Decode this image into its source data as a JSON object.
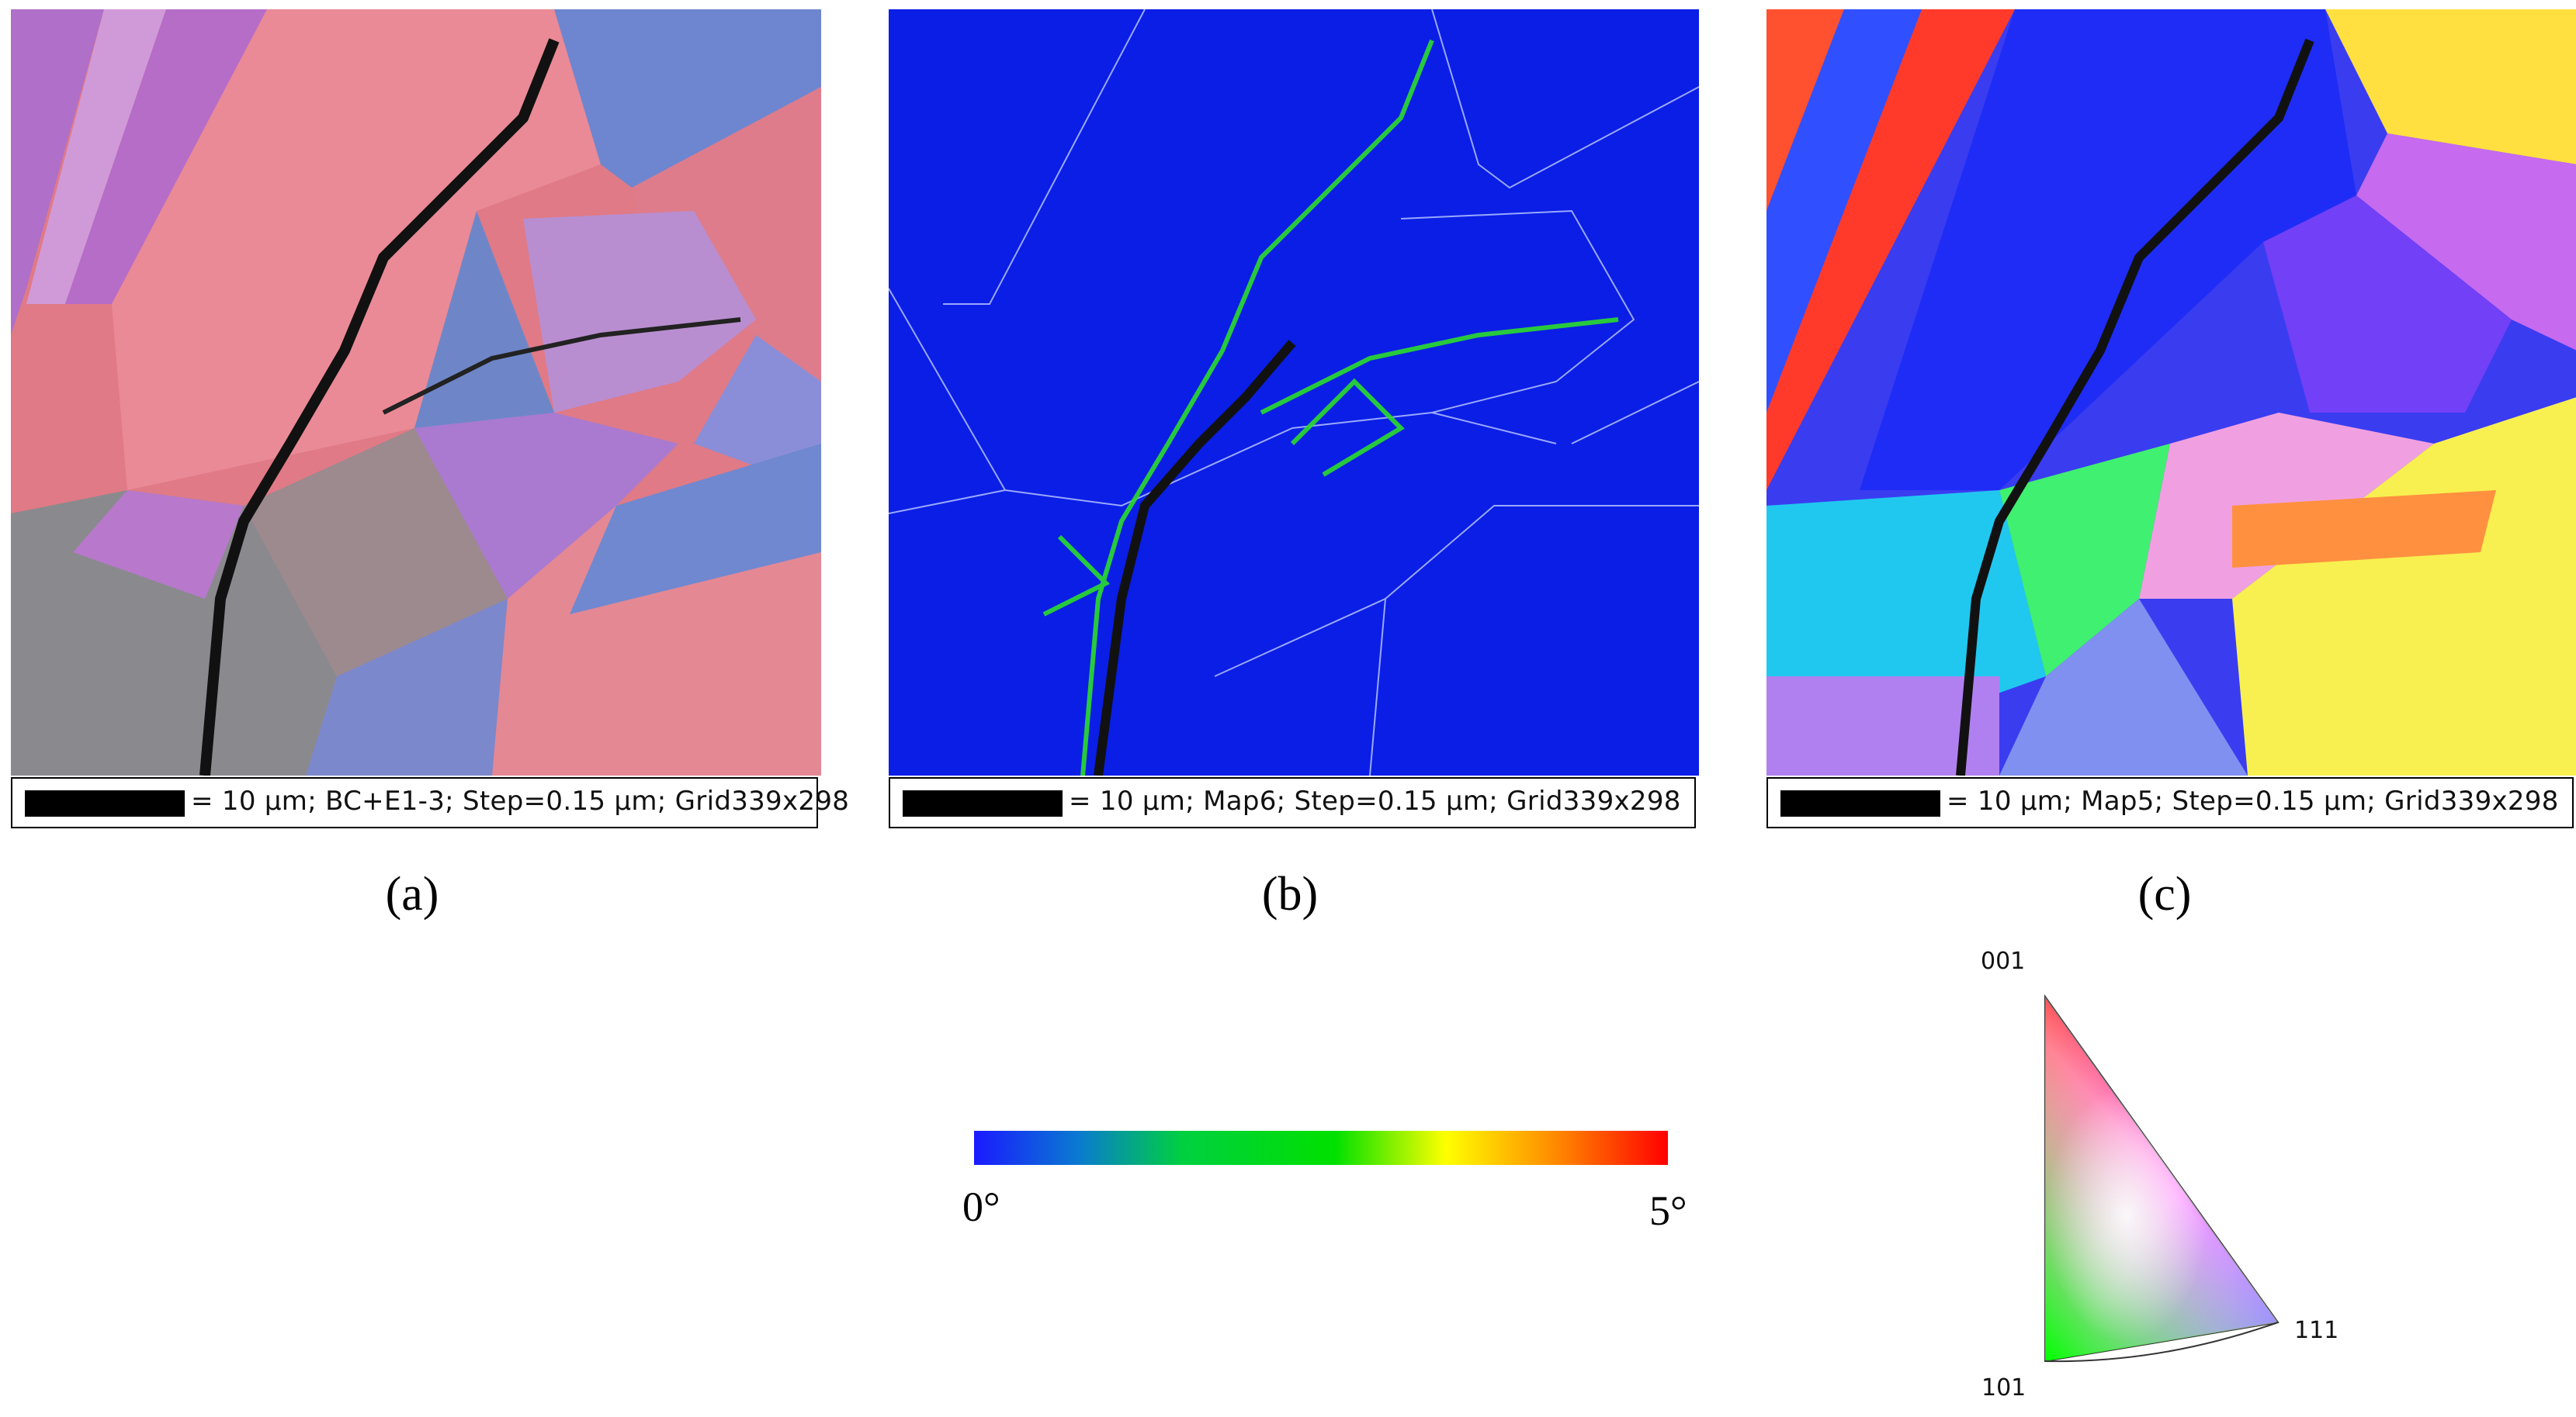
{
  "panels": [
    {
      "id": "a",
      "label": "(a)",
      "scalebar": "=  10 μm; BC+E1-3; Step=0.15 μm; Grid339x298"
    },
    {
      "id": "b",
      "label": "(b)",
      "scalebar": "=  10 μm; Map6; Step=0.15 μm; Grid339x298"
    },
    {
      "id": "c",
      "label": "(c)",
      "scalebar": "=  10 μm; Map5; Step=0.15 μm; Grid339x298"
    }
  ],
  "colorbar": {
    "min_label": "0°",
    "max_label": "5°",
    "colors": [
      "#1a1aff",
      "#00e000",
      "#ffff00",
      "#ff0000"
    ]
  },
  "ipf_key": {
    "top": "001",
    "right": "111",
    "bottom": "101"
  }
}
